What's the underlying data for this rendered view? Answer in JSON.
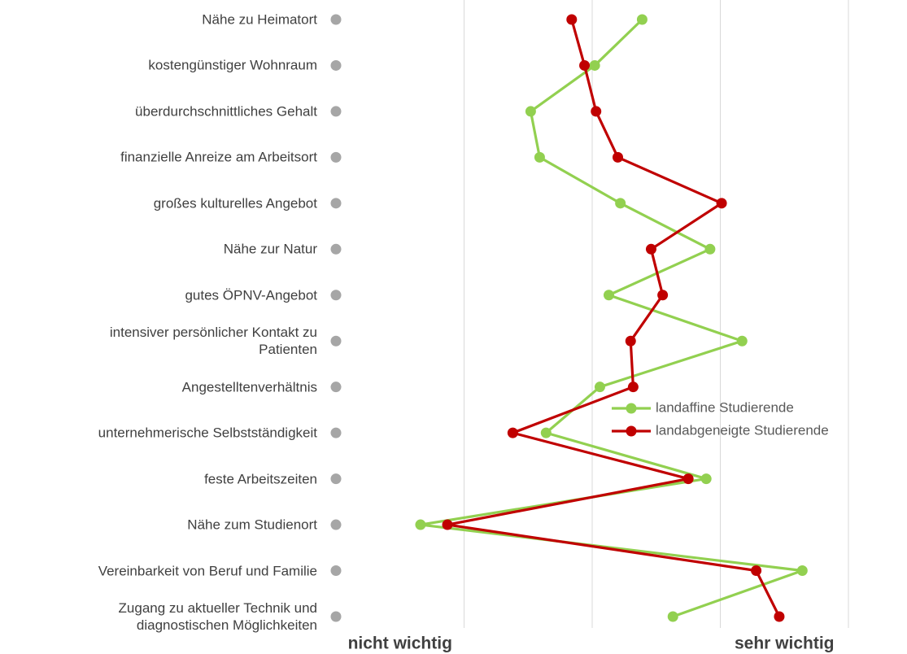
{
  "chart_data": {
    "type": "line",
    "orientation": "horizontal",
    "categories": [
      "Nähe zu Heimatort",
      "kostengünstiger Wohnraum",
      "überdurchschnittliches Gehalt",
      "finanzielle Anreize am Arbeitsort",
      "großes kulturelles Angebot",
      "Nähe zur Natur",
      "gutes ÖPNV-Angebot",
      "intensiver persönlicher Kontakt zu\nPatienten",
      "Angestelltenverhältnis",
      "unternehmerische Selbstständigkeit",
      "feste Arbeitszeiten",
      "Nähe zum Studienort",
      "Vereinbarkeit von Beruf und Familie",
      "Zugang zu aktueller Technik und\ndiagnostischen Möglichkeiten"
    ],
    "series": [
      {
        "color": "#a6a6a6",
        "values": [
          0,
          0,
          0,
          0,
          0,
          0,
          0,
          0,
          0,
          0,
          0,
          0,
          0,
          0
        ],
        "markers_only": true
      },
      {
        "name": "landaffine Studierende",
        "color": "#92d050",
        "values": [
          2.39,
          2.02,
          1.52,
          1.59,
          2.22,
          2.92,
          2.13,
          3.17,
          2.06,
          1.64,
          2.89,
          0.66,
          3.64,
          2.63
        ]
      },
      {
        "name": "landabgeneigte Studierende",
        "color": "#c00000",
        "values": [
          1.84,
          1.94,
          2.03,
          2.2,
          3.01,
          2.46,
          2.55,
          2.3,
          2.32,
          1.38,
          2.75,
          0.87,
          3.28,
          3.46
        ]
      }
    ],
    "xlim": [
      0,
      4
    ],
    "xgrid": [
      0,
      1,
      2,
      3,
      4
    ],
    "xticks": [
      {
        "value": 0.5,
        "label": "nicht wichtig"
      },
      {
        "value": 3.5,
        "label": "sehr wichtig"
      }
    ],
    "grid": true,
    "legend": "right"
  }
}
